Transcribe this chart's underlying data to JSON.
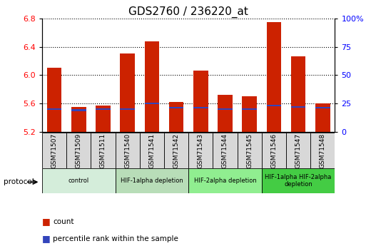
{
  "title": "GDS2760 / 236220_at",
  "samples": [
    "GSM71507",
    "GSM71509",
    "GSM71511",
    "GSM71540",
    "GSM71541",
    "GSM71542",
    "GSM71543",
    "GSM71544",
    "GSM71545",
    "GSM71546",
    "GSM71547",
    "GSM71548"
  ],
  "bar_values": [
    6.1,
    5.55,
    5.57,
    6.3,
    6.48,
    5.62,
    6.06,
    5.72,
    5.7,
    6.75,
    6.26,
    5.6
  ],
  "percentile_values": [
    20,
    19,
    20,
    20,
    25,
    21,
    21,
    20,
    20,
    23,
    22,
    21
  ],
  "bar_bottom": 5.2,
  "ylim": [
    5.2,
    6.8
  ],
  "yticks": [
    5.2,
    5.6,
    6.0,
    6.4,
    6.8
  ],
  "bar_color": "#cc2200",
  "percentile_color": "#3344bb",
  "right_yticks": [
    0,
    25,
    50,
    75,
    100
  ],
  "right_ylim": [
    0,
    100
  ],
  "groups": [
    {
      "label": "control",
      "start": 0,
      "end": 3,
      "color": "#d4edda"
    },
    {
      "label": "HIF-1alpha depletion",
      "start": 3,
      "end": 6,
      "color": "#b8ddb8"
    },
    {
      "label": "HIF-2alpha depletion",
      "start": 6,
      "end": 9,
      "color": "#90ee90"
    },
    {
      "label": "HIF-1alpha HIF-2alpha\ndepletion",
      "start": 9,
      "end": 12,
      "color": "#44cc44"
    }
  ],
  "bar_width": 0.6,
  "percentile_bar_height": 0.022,
  "background_color": "#ffffff",
  "plot_bg_color": "#ffffff",
  "tick_label_bg": "#d8d8d8",
  "title_fontsize": 11,
  "tick_fontsize": 7,
  "legend_items": [
    "count",
    "percentile rank within the sample"
  ]
}
